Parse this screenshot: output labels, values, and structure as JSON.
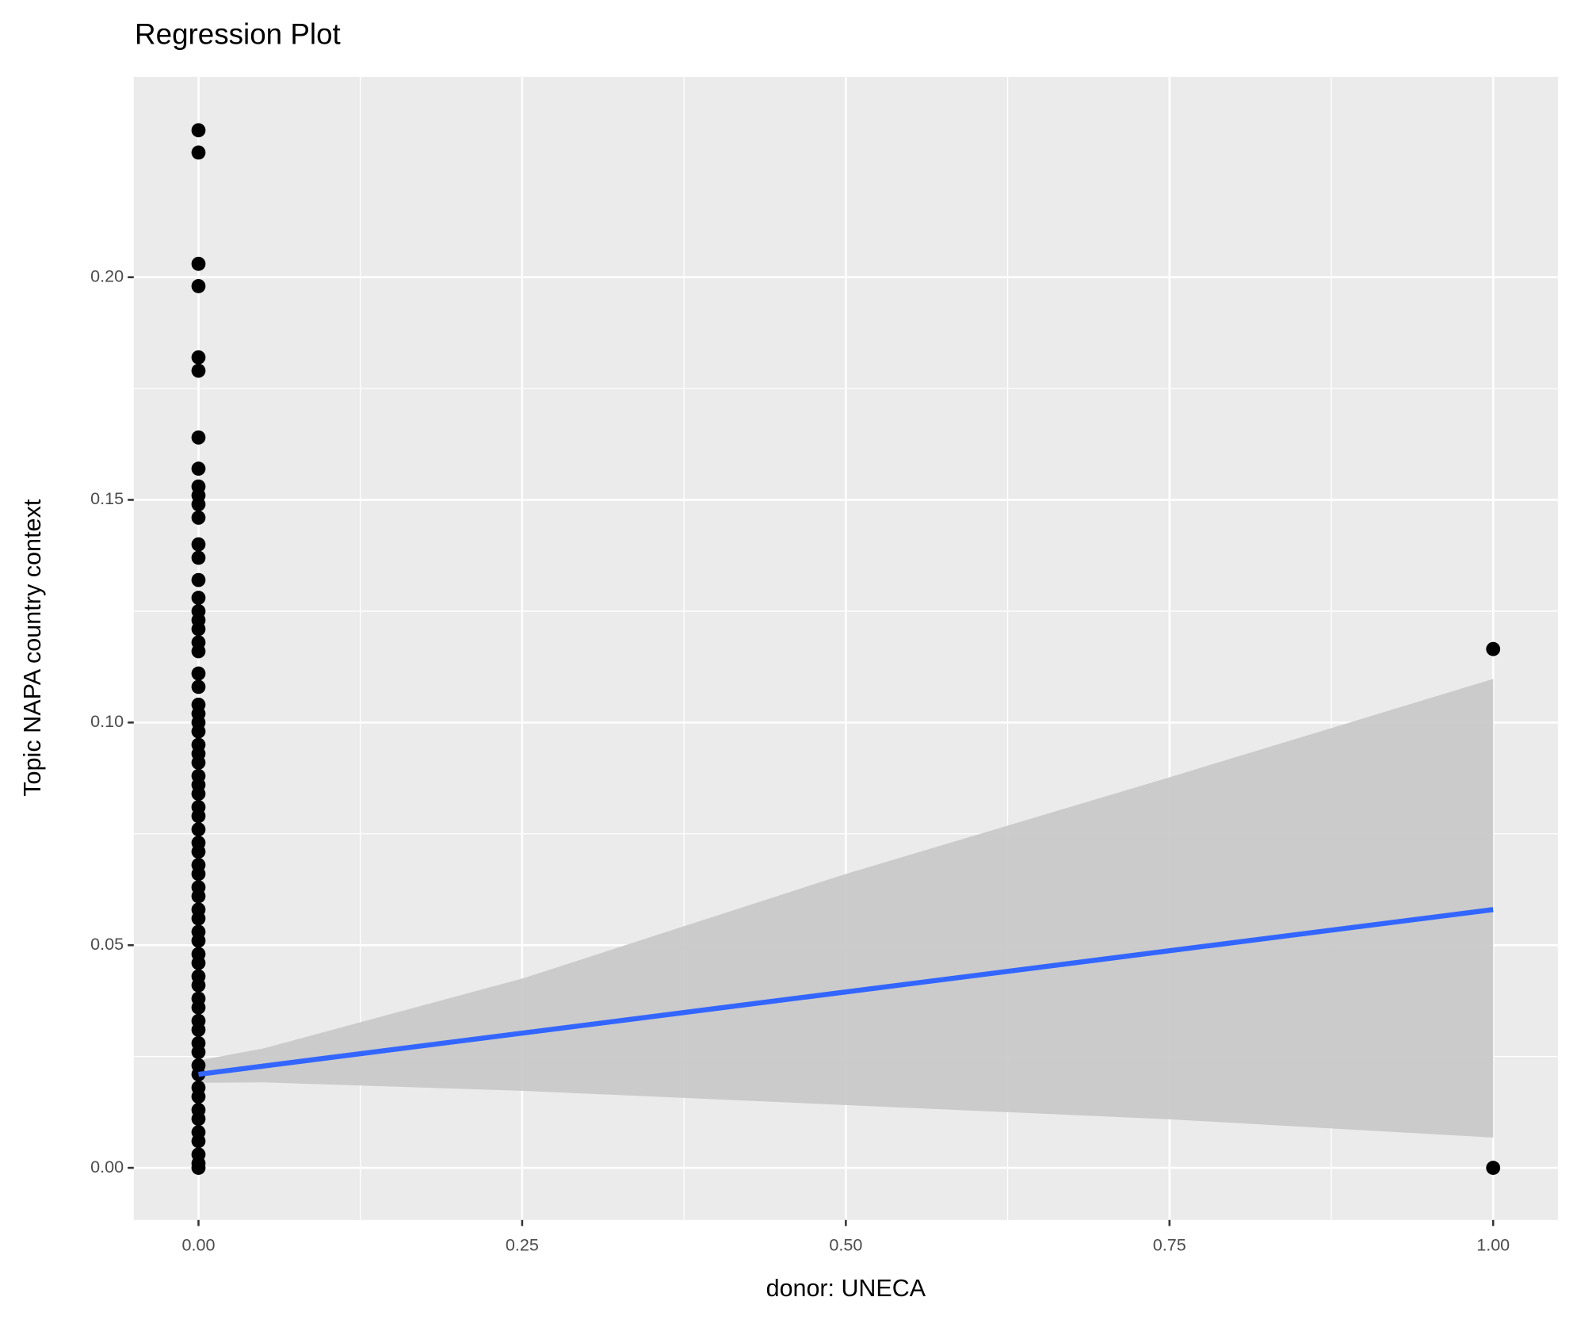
{
  "chart_data": {
    "type": "regression",
    "title": "Regression Plot",
    "x_label": "donor: UNECA",
    "y_label": "Topic NAPA country context",
    "xlim": [
      -0.05,
      1.05
    ],
    "ylim": [
      -0.0117,
      0.245
    ],
    "xticks": [
      {
        "value": 0,
        "label": "0.00"
      },
      {
        "value": 0.25,
        "label": "0.25"
      },
      {
        "value": 0.5,
        "label": "0.50"
      },
      {
        "value": 0.75,
        "label": "0.75"
      },
      {
        "value": 1,
        "label": "1.00"
      }
    ],
    "yticks": [
      {
        "value": 0,
        "label": "0.00"
      },
      {
        "value": 0.05,
        "label": "0.05"
      },
      {
        "value": 0.1,
        "label": "0.10"
      },
      {
        "value": 0.15,
        "label": "0.15"
      },
      {
        "value": 0.2,
        "label": "0.20"
      }
    ],
    "grid": true,
    "points": {
      "color": "#000000",
      "x": [
        0,
        0,
        0,
        0,
        0,
        0,
        0,
        0,
        0,
        0,
        0,
        0,
        0,
        0,
        0,
        0,
        0,
        0,
        0,
        0,
        0,
        0,
        0,
        0,
        0,
        0,
        0,
        0,
        0,
        0,
        0,
        0,
        0,
        0,
        0,
        0,
        0,
        0,
        0,
        0,
        0,
        0,
        0,
        0,
        0,
        0,
        0,
        0,
        0,
        0,
        0,
        0,
        0,
        0,
        0,
        0,
        0,
        0,
        0,
        0,
        0,
        0,
        0,
        0,
        0,
        0,
        0,
        1,
        1
      ],
      "y": [
        0.233,
        0.228,
        0.203,
        0.198,
        0.182,
        0.179,
        0.164,
        0.157,
        0.153,
        0.151,
        0.149,
        0.146,
        0.14,
        0.137,
        0.132,
        0.128,
        0.125,
        0.123,
        0.121,
        0.118,
        0.116,
        0.111,
        0.108,
        0.104,
        0.102,
        0.1,
        0.098,
        0.095,
        0.093,
        0.091,
        0.088,
        0.086,
        0.084,
        0.081,
        0.079,
        0.076,
        0.073,
        0.071,
        0.068,
        0.066,
        0.063,
        0.061,
        0.058,
        0.056,
        0.053,
        0.051,
        0.048,
        0.046,
        0.043,
        0.041,
        0.038,
        0.036,
        0.033,
        0.031,
        0.028,
        0.026,
        0.023,
        0.021,
        0.018,
        0.016,
        0.013,
        0.011,
        0.008,
        0.006,
        0.003,
        0.001,
        0.0,
        0.1165,
        0.0
      ]
    },
    "fit": {
      "color": "#3366ff",
      "x": [
        0,
        1
      ],
      "y": [
        0.021,
        0.058
      ]
    },
    "band": {
      "color": "#c9c9c9",
      "x": [
        0,
        0.05,
        0.25,
        0.5,
        0.75,
        1
      ],
      "lower": [
        0.0191,
        0.0192,
        0.0173,
        0.0141,
        0.0109,
        0.0068
      ],
      "upper": [
        0.0241,
        0.0268,
        0.0425,
        0.066,
        0.0877,
        0.1098
      ]
    }
  }
}
